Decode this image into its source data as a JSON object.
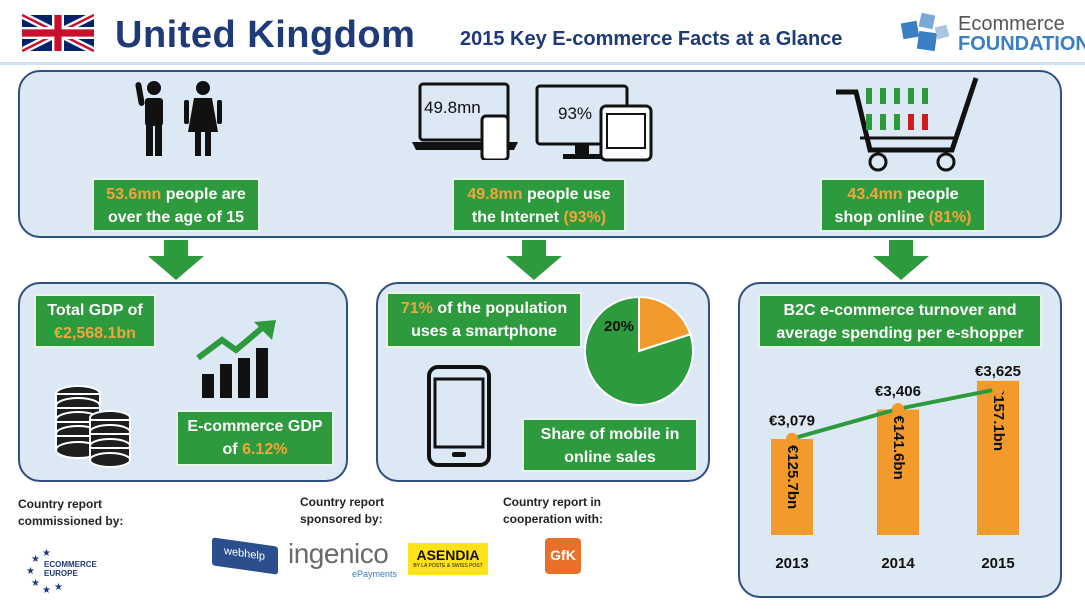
{
  "header": {
    "title": "United Kingdom",
    "subtitle": "2015 Key E-commerce Facts at a Glance",
    "logo_line1": "Ecommerce",
    "logo_line2": "FOUNDATION"
  },
  "top": {
    "people_num": "53.6mn",
    "people_text1": " people are",
    "people_text2": "over the age of 15",
    "internet_num": "49.8mn",
    "internet_text1": " people use",
    "internet_text2": "the Internet ",
    "internet_pct": "(93%)",
    "laptop_label": "49.8mn",
    "monitor_label": "93%",
    "shop_num": "43.4mn",
    "shop_text1": " people",
    "shop_text2": "shop online ",
    "shop_pct": "(81%)"
  },
  "gdp": {
    "label": "Total GDP of",
    "value": "€2,568.1bn",
    "ecom_label": "E-commerce GDP",
    "ecom_of": "of ",
    "ecom_value": "6.12%"
  },
  "mobile": {
    "smart_pct": "71%",
    "smart_text1": " of the population",
    "smart_text2": "uses a smartphone",
    "pie_label": "20%",
    "share_text1": "Share of mobile in",
    "share_text2": "online sales"
  },
  "b2c": {
    "title1": "B2C e-commerce turnover and",
    "title2": "average spending per e-shopper"
  },
  "chart_data": {
    "type": "bar",
    "categories": [
      "2013",
      "2014",
      "2015"
    ],
    "series": [
      {
        "values": [
          125.7,
          141.6,
          157.1
        ],
        "labels": [
          "€125.7bn",
          "€141.6bn",
          "€157.1bn"
        ],
        "color": "#f39a2c"
      },
      {
        "values": [
          3079,
          3406,
          3625
        ],
        "labels": [
          "€3,079",
          "€3,406",
          "€3,625"
        ],
        "color": "#2e9a3e"
      }
    ]
  },
  "pie_data": {
    "type": "pie",
    "values": [
      20,
      80
    ],
    "colors": [
      "#f39a2c",
      "#2e9a3e"
    ]
  },
  "footer": {
    "commissioned": "Country report\ncommissioned by:",
    "sponsored": "Country report\nsponsored by:",
    "cooperation": "Country report in\ncooperation with:",
    "ecommerce_europe1": "ECOMMERCE",
    "ecommerce_europe2": "EUROPE",
    "webhelp": "webhelp",
    "ingenico": "ingenico",
    "ingenico_sub": "ePayments",
    "asendia": "ASENDIA",
    "asendia_sub": "BY LA POSTE & SWISS POST",
    "gfk": "GfK"
  },
  "colors": {
    "navy": "#1f3a78",
    "green": "#2e9a3e",
    "orange": "#f39a2c",
    "panel": "#dce8f3"
  }
}
